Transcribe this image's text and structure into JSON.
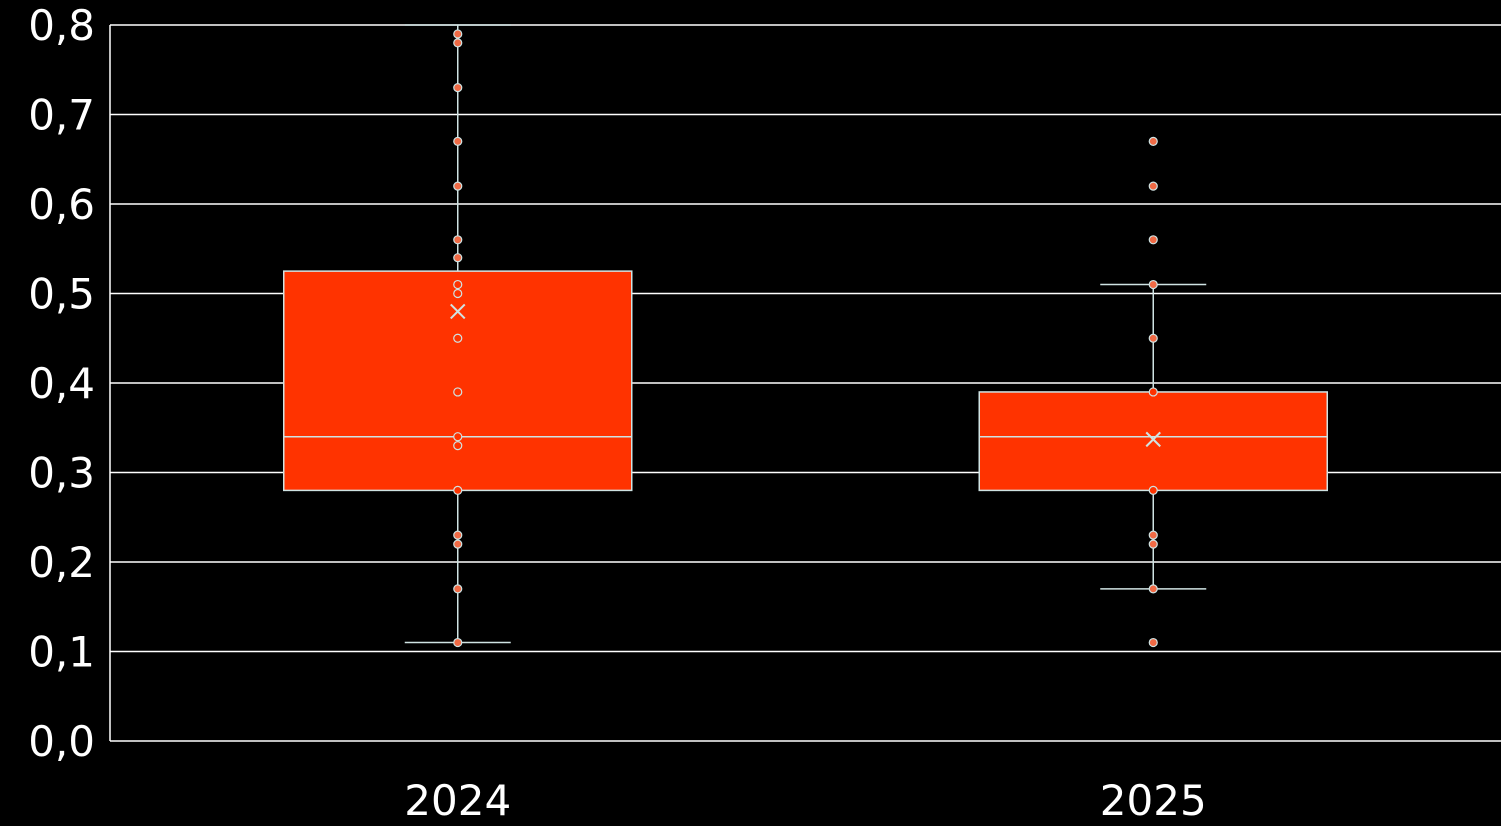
{
  "chart_data": {
    "type": "boxplot",
    "y_ticks": [
      "0,0",
      "0,1",
      "0,2",
      "0,3",
      "0,4",
      "0,5",
      "0,6",
      "0,7",
      "0,8"
    ],
    "ylim": [
      0,
      0.8
    ],
    "grid": true,
    "categories": [
      "2024",
      "2025"
    ],
    "boxes": [
      {
        "category": "2024",
        "q1": 0.28,
        "median": 0.34,
        "q3": 0.525,
        "whisker_low": 0.11,
        "whisker_high": 0.8,
        "mean": 0.48,
        "points": [
          0.79,
          0.78,
          0.73,
          0.67,
          0.62,
          0.56,
          0.54,
          0.51,
          0.5,
          0.45,
          0.39,
          0.34,
          0.33,
          0.28,
          0.23,
          0.22,
          0.17,
          0.11
        ]
      },
      {
        "category": "2025",
        "q1": 0.28,
        "median": 0.34,
        "q3": 0.39,
        "whisker_low": 0.17,
        "whisker_high": 0.51,
        "mean": 0.337,
        "points": [
          0.67,
          0.62,
          0.56,
          0.51,
          0.45,
          0.39,
          0.28,
          0.23,
          0.22,
          0.17,
          0.11
        ]
      }
    ],
    "colors": {
      "background": "#000000",
      "box_fill": "#ff3300",
      "box_stroke": "#cfe3e3",
      "grid": "#ffffff",
      "point_fill": "#f06a45",
      "point_stroke": "#cfe3e3",
      "text": "#ffffff"
    }
  }
}
